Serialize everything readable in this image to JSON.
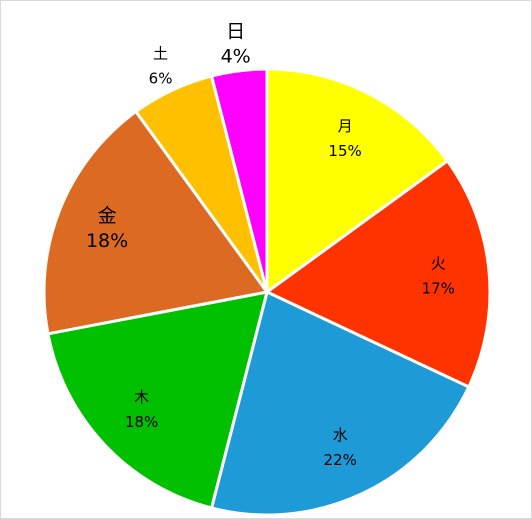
{
  "chart_data": {
    "type": "pie",
    "categories": [
      "月",
      "火",
      "水",
      "木",
      "金",
      "土",
      "日"
    ],
    "values": [
      15,
      17,
      22,
      18,
      18,
      6,
      4
    ],
    "value_labels": [
      "15%",
      "17%",
      "22%",
      "18%",
      "18%",
      "6%",
      "4%"
    ],
    "colors": [
      "#ffff00",
      "#ff3300",
      "#1e9ad6",
      "#00c000",
      "#dd6a22",
      "#ffc000",
      "#ff00ff"
    ]
  }
}
